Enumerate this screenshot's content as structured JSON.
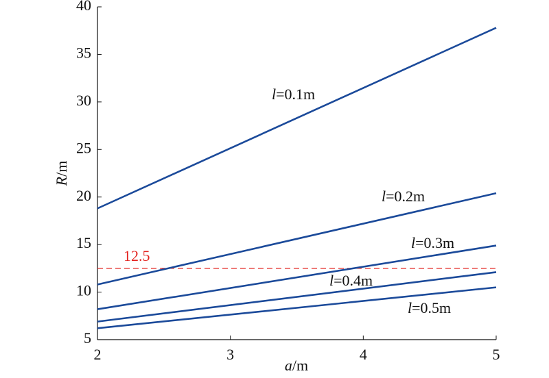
{
  "chart_data": {
    "type": "line",
    "x_label": "a/m",
    "y_label": "R/m",
    "x": [
      2,
      5
    ],
    "series": [
      {
        "name": "l=0.1m",
        "color": "#1b4a9a",
        "values": [
          18.8,
          37.8
        ]
      },
      {
        "name": "l=0.2m",
        "color": "#1b4a9a",
        "values": [
          10.8,
          20.4
        ]
      },
      {
        "name": "l=0.3m",
        "color": "#1b4a9a",
        "values": [
          8.2,
          14.9
        ]
      },
      {
        "name": "l=0.4m",
        "color": "#1b4a9a",
        "values": [
          6.9,
          12.1
        ]
      },
      {
        "name": "l=0.5m",
        "color": "#1b4a9a",
        "values": [
          6.2,
          10.5
        ]
      }
    ],
    "hline": {
      "y": 12.5,
      "color": "#e3231f"
    },
    "xlim": [
      2,
      5
    ],
    "xticks": [
      2,
      3,
      4,
      5
    ],
    "ylim": [
      5,
      40
    ],
    "yticks": [
      5,
      10,
      15,
      20,
      25,
      30,
      35,
      40
    ],
    "grid": false
  }
}
